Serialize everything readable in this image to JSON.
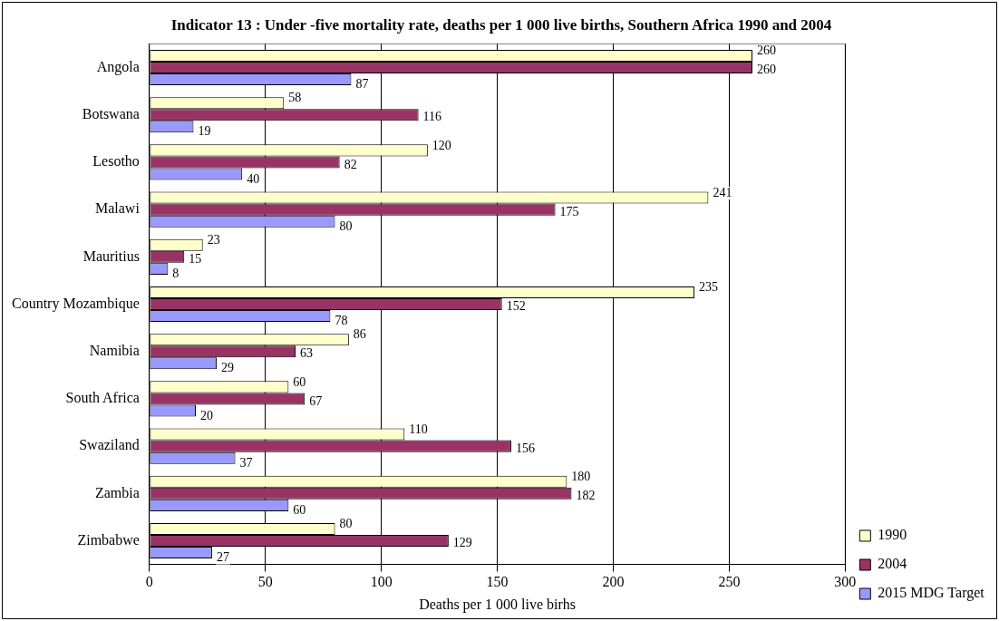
{
  "chart_data": {
    "type": "bar",
    "orientation": "horizontal",
    "title": "Indicator 13 : Under -five mortality rate, deaths per 1 000 live births, Southern Africa 1990 and 2004",
    "xlabel": "Deaths per 1 000 live birhs",
    "categories": [
      "Angola",
      "Botswana",
      "Lesotho",
      "Malawi",
      "Mauritius",
      "Country Mozambique",
      "Namibia",
      "South Africa",
      "Swaziland",
      "Zambia",
      "Zimbabwe"
    ],
    "series": [
      {
        "name": "1990",
        "color": "#ffffcc",
        "values": [
          260,
          58,
          120,
          241,
          23,
          235,
          86,
          60,
          110,
          180,
          80
        ]
      },
      {
        "name": "2004",
        "color": "#993366",
        "values": [
          260,
          116,
          82,
          175,
          15,
          152,
          63,
          67,
          156,
          182,
          129
        ]
      },
      {
        "name": "2015 MDG Target",
        "color": "#9999ff",
        "values": [
          87,
          19,
          40,
          80,
          8,
          78,
          29,
          20,
          37,
          60,
          27
        ]
      }
    ],
    "xlim": [
      0,
      300
    ],
    "xticks": [
      0,
      50,
      100,
      150,
      200,
      250,
      300
    ],
    "grid": "x",
    "legend": "bottom right",
    "data_labels": true
  }
}
